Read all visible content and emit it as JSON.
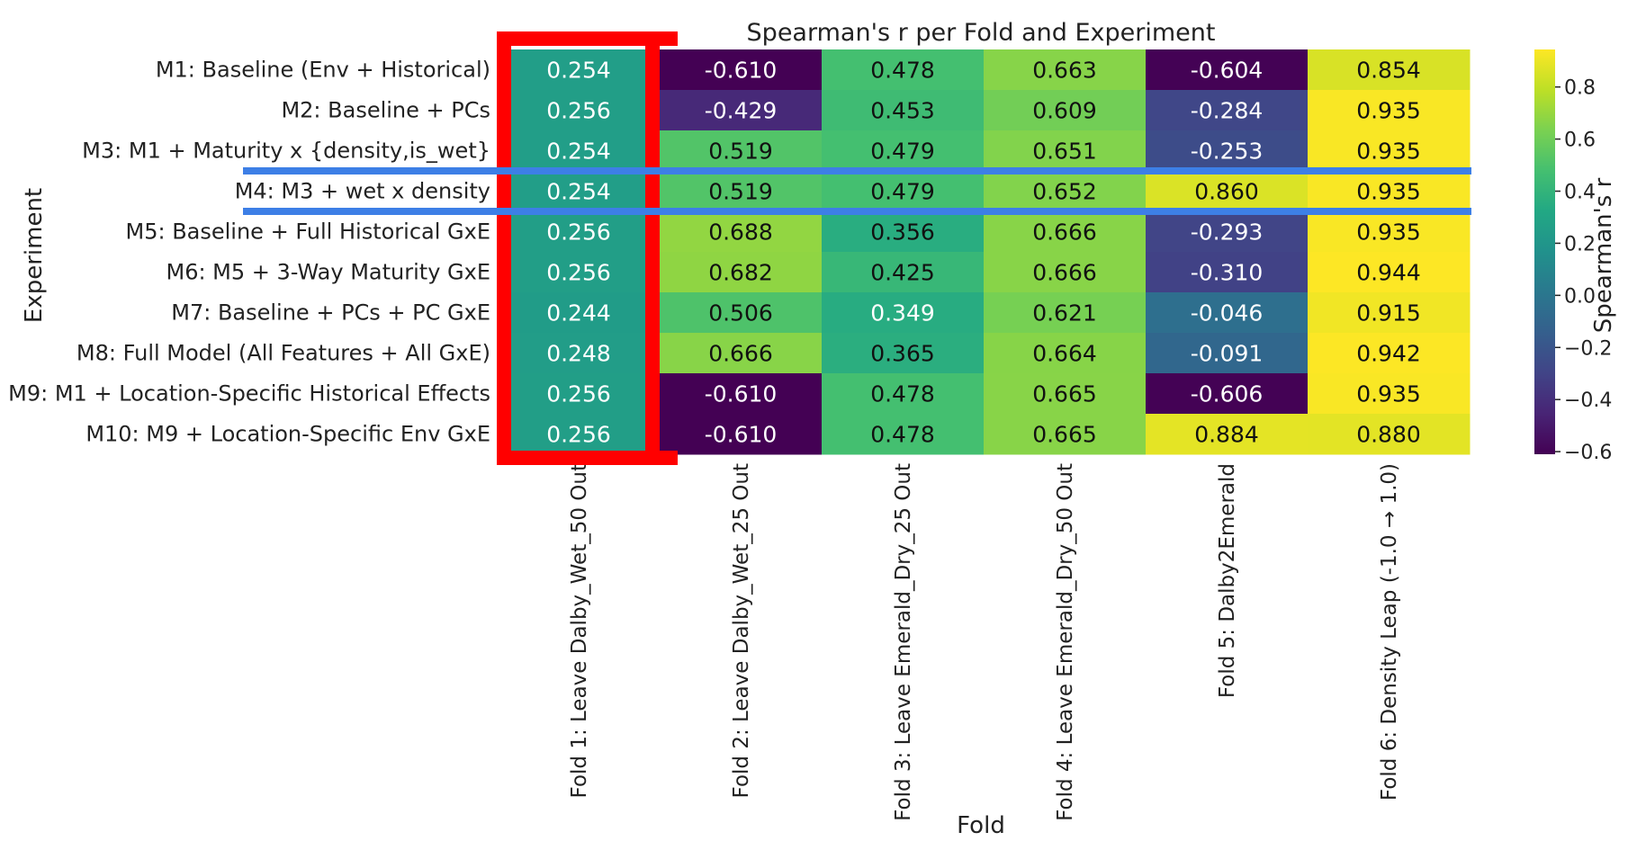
{
  "chart_data": {
    "type": "heatmap",
    "title": "Spearman's r per Fold and Experiment",
    "xlabel": "Fold",
    "ylabel": "Experiment",
    "colorbar_label": "Spearman's r",
    "colormap": "viridis",
    "vmin": -0.61,
    "vmax": 0.944,
    "colorbar_ticks": [
      0.8,
      0.6,
      0.4,
      0.2,
      0.0,
      -0.2,
      -0.4,
      -0.6
    ],
    "colorbar_tick_labels": [
      "0.8",
      "0.6",
      "0.4",
      "0.2",
      "0.0",
      "−0.2",
      "−0.4",
      "−0.6"
    ],
    "columns": [
      "Fold 1: Leave Dalby_Wet_50 Out",
      "Fold 2: Leave Dalby_Wet_25 Out",
      "Fold 3: Leave Emerald_Dry_25 Out",
      "Fold 4: Leave Emerald_Dry_50 Out",
      "Fold 5: Dalby2Emerald",
      "Fold 6: Density Leap (-1.0 → 1.0)"
    ],
    "rows": [
      "M1: Baseline (Env + Historical)",
      "M2: Baseline + PCs",
      "M3: M1 + Maturity x {density,is_wet}",
      "M4: M3 + wet x density",
      "M5: Baseline + Full Historical GxE",
      "M6: M5 + 3-Way Maturity GxE",
      "M7: Baseline + PCs + PC GxE",
      "M8: Full Model (All Features + All GxE)",
      "M9: M1 + Location-Specific Historical Effects",
      "M10: M9 + Location-Specific Env GxE"
    ],
    "values": [
      [
        0.254,
        -0.61,
        0.478,
        0.663,
        -0.604,
        0.854
      ],
      [
        0.256,
        -0.429,
        0.453,
        0.609,
        -0.284,
        0.935
      ],
      [
        0.254,
        0.519,
        0.479,
        0.651,
        -0.253,
        0.935
      ],
      [
        0.254,
        0.519,
        0.479,
        0.652,
        0.86,
        0.935
      ],
      [
        0.256,
        0.688,
        0.356,
        0.666,
        -0.293,
        0.935
      ],
      [
        0.256,
        0.682,
        0.425,
        0.666,
        -0.31,
        0.944
      ],
      [
        0.244,
        0.506,
        0.349,
        0.621,
        -0.046,
        0.915
      ],
      [
        0.248,
        0.666,
        0.365,
        0.664,
        -0.091,
        0.942
      ],
      [
        0.256,
        -0.61,
        0.478,
        0.665,
        -0.606,
        0.935
      ],
      [
        0.256,
        -0.61,
        0.478,
        0.665,
        0.884,
        0.88
      ]
    ],
    "value_labels": [
      [
        "0.254",
        "-0.610",
        "0.478",
        "0.663",
        "-0.604",
        "0.854"
      ],
      [
        "0.256",
        "-0.429",
        "0.453",
        "0.609",
        "-0.284",
        "0.935"
      ],
      [
        "0.254",
        "0.519",
        "0.479",
        "0.651",
        "-0.253",
        "0.935"
      ],
      [
        "0.254",
        "0.519",
        "0.479",
        "0.652",
        "0.860",
        "0.935"
      ],
      [
        "0.256",
        "0.688",
        "0.356",
        "0.666",
        "-0.293",
        "0.935"
      ],
      [
        "0.256",
        "0.682",
        "0.425",
        "0.666",
        "-0.310",
        "0.944"
      ],
      [
        "0.244",
        "0.506",
        "0.349",
        "0.621",
        "-0.046",
        "0.915"
      ],
      [
        "0.248",
        "0.666",
        "0.365",
        "0.664",
        "-0.091",
        "0.942"
      ],
      [
        "0.256",
        "-0.610",
        "0.478",
        "0.665",
        "-0.606",
        "0.935"
      ],
      [
        "0.256",
        "-0.610",
        "0.478",
        "0.665",
        "0.884",
        "0.880"
      ]
    ],
    "highlights": {
      "column_index": 0,
      "column_color": "#ff0000",
      "row_index": 3,
      "row_color": "#3d7fe6"
    }
  }
}
